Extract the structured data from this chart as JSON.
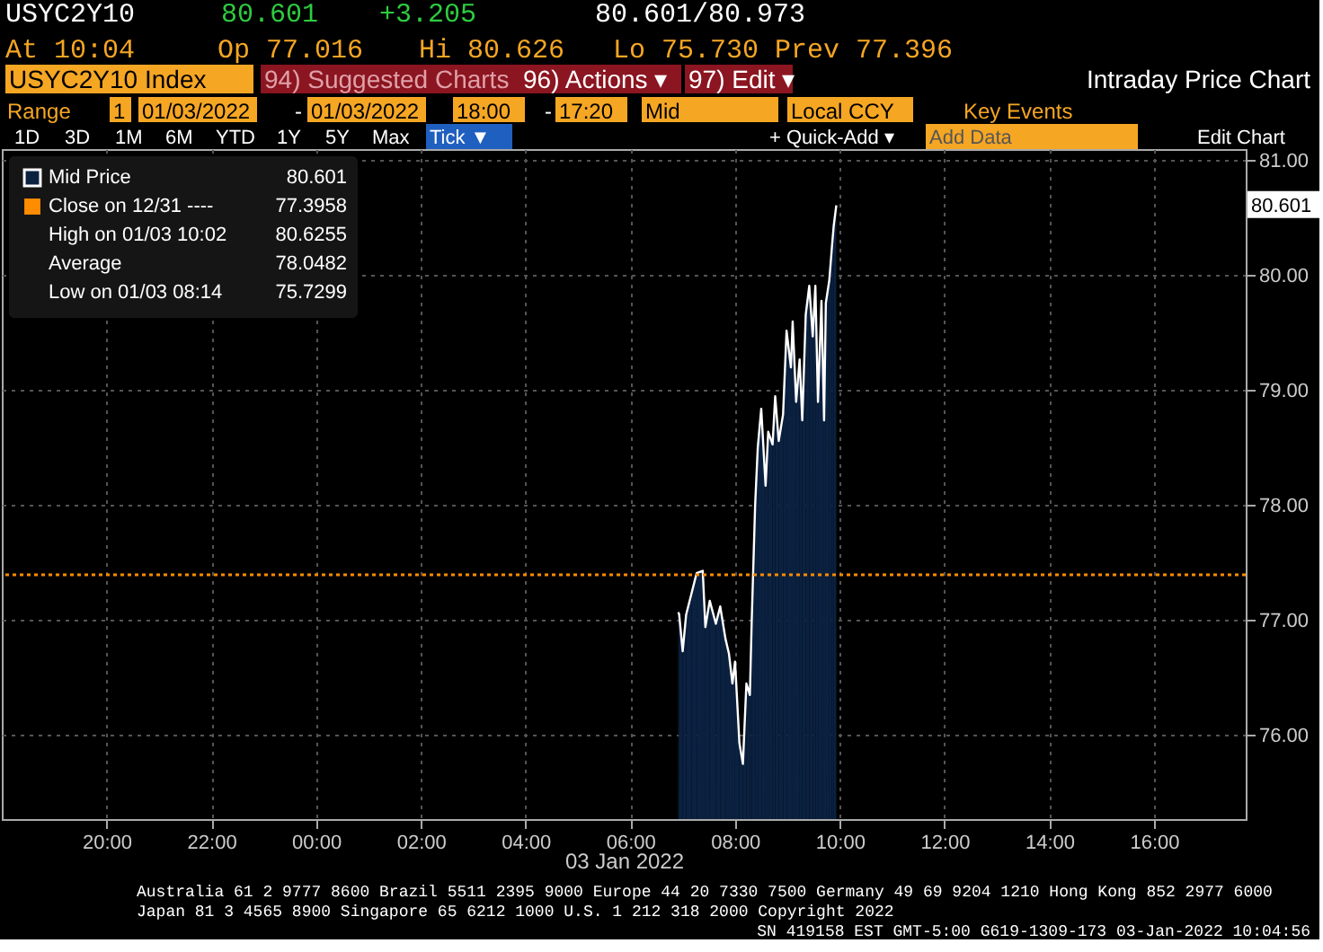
{
  "chart_data": {
    "type": "area",
    "xlabel": "03 Jan 2022",
    "x": [
      "2022-01-03T06:55",
      "2022-01-03T06:56",
      "2022-01-03T07:00",
      "2022-01-03T07:04",
      "2022-01-03T07:10",
      "2022-01-03T07:16",
      "2022-01-03T07:23",
      "2022-01-03T07:26",
      "2022-01-03T07:31",
      "2022-01-03T07:38",
      "2022-01-03T07:43",
      "2022-01-03T07:49",
      "2022-01-03T07:53",
      "2022-01-03T07:57",
      "2022-01-03T08:00",
      "2022-01-03T08:05",
      "2022-01-03T08:09",
      "2022-01-03T08:13",
      "2022-01-03T08:17",
      "2022-01-03T08:19",
      "2022-01-03T08:23",
      "2022-01-03T08:26",
      "2022-01-03T08:30",
      "2022-01-03T08:35",
      "2022-01-03T08:38",
      "2022-01-03T08:43",
      "2022-01-03T08:46",
      "2022-01-03T08:50",
      "2022-01-03T08:55",
      "2022-01-03T08:59",
      "2022-01-03T09:04",
      "2022-01-03T09:06",
      "2022-01-03T09:10",
      "2022-01-03T09:14",
      "2022-01-03T09:17",
      "2022-01-03T09:21",
      "2022-01-03T09:25",
      "2022-01-03T09:29",
      "2022-01-03T09:32",
      "2022-01-03T09:35",
      "2022-01-03T09:39",
      "2022-01-03T09:42",
      "2022-01-03T09:44",
      "2022-01-03T09:48",
      "2022-01-03T09:51",
      "2022-01-03T09:53",
      "2022-01-03T09:56"
    ],
    "series": [
      {
        "name": "Mid Price",
        "color": "#0b2140",
        "values": [
          77.07,
          77.05,
          76.73,
          77.05,
          77.23,
          77.41,
          77.43,
          76.94,
          77.17,
          76.97,
          77.12,
          76.84,
          76.71,
          76.45,
          76.64,
          75.93,
          75.75,
          76.45,
          76.35,
          76.97,
          78.0,
          78.5,
          78.84,
          78.17,
          78.64,
          78.53,
          78.95,
          78.56,
          78.79,
          79.52,
          79.2,
          79.6,
          78.9,
          79.27,
          78.74,
          79.66,
          79.91,
          79.47,
          79.91,
          78.9,
          79.78,
          78.74,
          79.76,
          79.96,
          80.25,
          80.43,
          80.61
        ]
      }
    ],
    "xlim": [
      "2022-01-02T18:00",
      "2022-01-03T17:45"
    ],
    "xticks": [
      {
        "value": "2022-01-02T20:00",
        "label": "20:00"
      },
      {
        "value": "2022-01-02T22:00",
        "label": "22:00"
      },
      {
        "value": "2022-01-03T00:00",
        "label": "00:00"
      },
      {
        "value": "2022-01-03T02:00",
        "label": "02:00"
      },
      {
        "value": "2022-01-03T04:00",
        "label": "04:00"
      },
      {
        "value": "2022-01-03T06:00",
        "label": "06:00"
      },
      {
        "value": "2022-01-03T08:00",
        "label": "08:00"
      },
      {
        "value": "2022-01-03T10:00",
        "label": "10:00"
      },
      {
        "value": "2022-01-03T12:00",
        "label": "12:00"
      },
      {
        "value": "2022-01-03T14:00",
        "label": "14:00"
      },
      {
        "value": "2022-01-03T16:00",
        "label": "16:00"
      }
    ],
    "ylim": [
      75.27,
      81.1
    ],
    "yticks": [
      {
        "value": 76,
        "label": "76.00"
      },
      {
        "value": 77,
        "label": "77.00"
      },
      {
        "value": 78,
        "label": "78.00"
      },
      {
        "value": 79,
        "label": "79.00"
      },
      {
        "value": 80,
        "label": "80.00"
      },
      {
        "value": 81,
        "label": "81.00"
      }
    ],
    "ref_lines": [
      {
        "axis": "y",
        "value": 77.3958,
        "label": "Close on 12/31 ----",
        "color": "#ff8c00",
        "line_style": "dotted"
      }
    ],
    "grid": true,
    "legend": "top left",
    "line_style": "solid",
    "annotations": [
      "USYC2Y10",
      "80.601",
      "+3.205",
      "80.601/80.973",
      "At 10:04",
      "Op 77.016",
      "Hi 80.626",
      "Lo 75.730",
      "Prev 77.396",
      "USYC2Y10 Index",
      "94) Suggested Charts",
      "96) Actions ▾",
      "97) Edit ▾",
      "Intraday Price Chart",
      "Range",
      "1",
      "01/03/2022",
      "-",
      "01/03/2022",
      "18:00",
      "-",
      "17:20",
      "Mid",
      "Local CCY",
      "Key Events",
      "1D",
      "3D",
      "1M",
      "6M",
      "YTD",
      "1Y",
      "5Y",
      "Max",
      "Tick ▼",
      "+ Quick-Add ▾",
      "Add Data",
      "Edit Chart",
      "80.601",
      "80.601",
      "77.3958",
      "High on 01/03 10:02",
      "80.6255",
      "Average",
      "78.0482",
      "Low on 01/03 08:14",
      "75.7299",
      "Australia 61 2 9777 8600 Brazil 5511 2395 9000 Europe 44 20 7330 7500 Germany 49 69 9204 1210 Hong Kong 852 2977 6000",
      "Japan 81 3 4565 8900      Singapore 65 6212 1000      U.S. 1 212 318 2000      Copyright 2022",
      "SN 419158 EST  GMT-5:00 G619-1309-173 03-Jan-2022 10:04:56"
    ]
  }
}
